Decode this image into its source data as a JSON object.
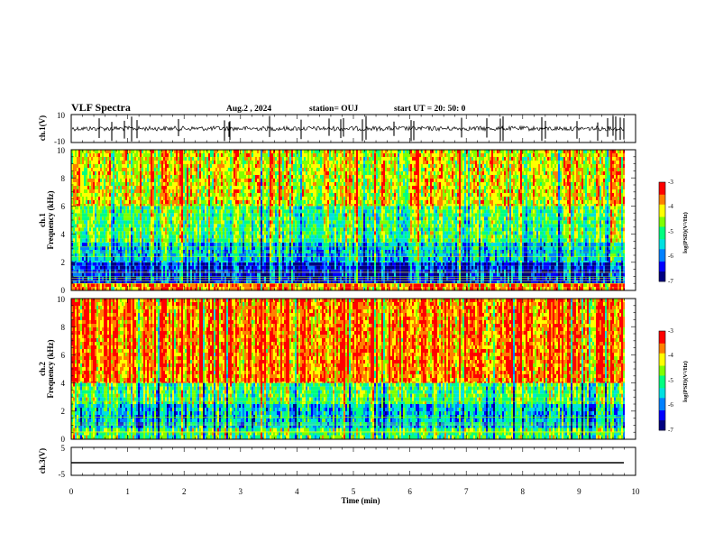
{
  "header": {
    "title": "VLF Spectra",
    "date": "Aug.2 , 2024",
    "station": "station= OUJ",
    "start": "start  UT =   20: 50: 0"
  },
  "colors": {
    "spectrogram_scale": [
      "#000080",
      "#0000ff",
      "#0080ff",
      "#00e0e0",
      "#00ff80",
      "#80ff00",
      "#ffff00",
      "#ff8000",
      "#ff0000",
      "#ffd0d0"
    ],
    "waveform": "#000000"
  },
  "chart_data": [
    {
      "type": "line",
      "ylabel": "ch.1(V)",
      "ylim": [
        -10,
        10
      ],
      "yticks": [
        "10",
        "-10"
      ],
      "xlim": [
        0,
        10
      ],
      "description_values": {
        "baseline": 0,
        "typical_amplitude": 2,
        "spike_amplitude": 10
      }
    },
    {
      "type": "heatmap",
      "ylabel_top": "ch.1",
      "ylabel": "Frequency  (kHz)",
      "ylim": [
        0,
        10
      ],
      "yticks": [
        "0",
        "2",
        "4",
        "6",
        "8",
        "10"
      ],
      "xlim": [
        0,
        10
      ],
      "colorbar": {
        "label": "log(PSD)(V²/Hz)",
        "range": [
          -7,
          -3
        ],
        "ticks": [
          "-3",
          "-4",
          "-5",
          "-6",
          "-7"
        ]
      },
      "bands": [
        {
          "from_khz": 0,
          "to_khz": 0.5,
          "level": "high"
        },
        {
          "from_khz": 0.5,
          "to_khz": 2.0,
          "level": "low"
        },
        {
          "from_khz": 2.0,
          "to_khz": 3.4,
          "level": "low-medium"
        },
        {
          "from_khz": 3.4,
          "to_khz": 6.0,
          "level": "medium"
        },
        {
          "from_khz": 6.0,
          "to_khz": 10,
          "level": "medium-high"
        }
      ]
    },
    {
      "type": "heatmap",
      "ylabel_top": "ch.2",
      "ylabel": "Frequency  (kHz)",
      "ylim": [
        0,
        10
      ],
      "yticks": [
        "0",
        "2",
        "4",
        "6",
        "8",
        "10"
      ],
      "xlim": [
        0,
        10
      ],
      "colorbar": {
        "label": "log(PSD)(V²/Hz)",
        "range": [
          -7,
          -3
        ],
        "ticks": [
          "-3",
          "-4",
          "-5",
          "-6",
          "-7"
        ]
      },
      "bands": [
        {
          "from_khz": 0,
          "to_khz": 0.8,
          "level": "medium"
        },
        {
          "from_khz": 0.8,
          "to_khz": 2.5,
          "level": "low-medium"
        },
        {
          "from_khz": 2.5,
          "to_khz": 4.0,
          "level": "medium"
        },
        {
          "from_khz": 4.0,
          "to_khz": 10,
          "level": "high"
        }
      ]
    },
    {
      "type": "line",
      "ylabel": "ch.3(V)",
      "ylim": [
        -5,
        5
      ],
      "yticks": [
        "5",
        "-5"
      ],
      "xlim": [
        0,
        10
      ],
      "values": {
        "constant": -1.0
      }
    }
  ],
  "xaxis": {
    "label": "Time  (min)",
    "ticks": [
      "0",
      "1",
      "2",
      "3",
      "4",
      "5",
      "6",
      "7",
      "8",
      "9",
      "10"
    ]
  }
}
